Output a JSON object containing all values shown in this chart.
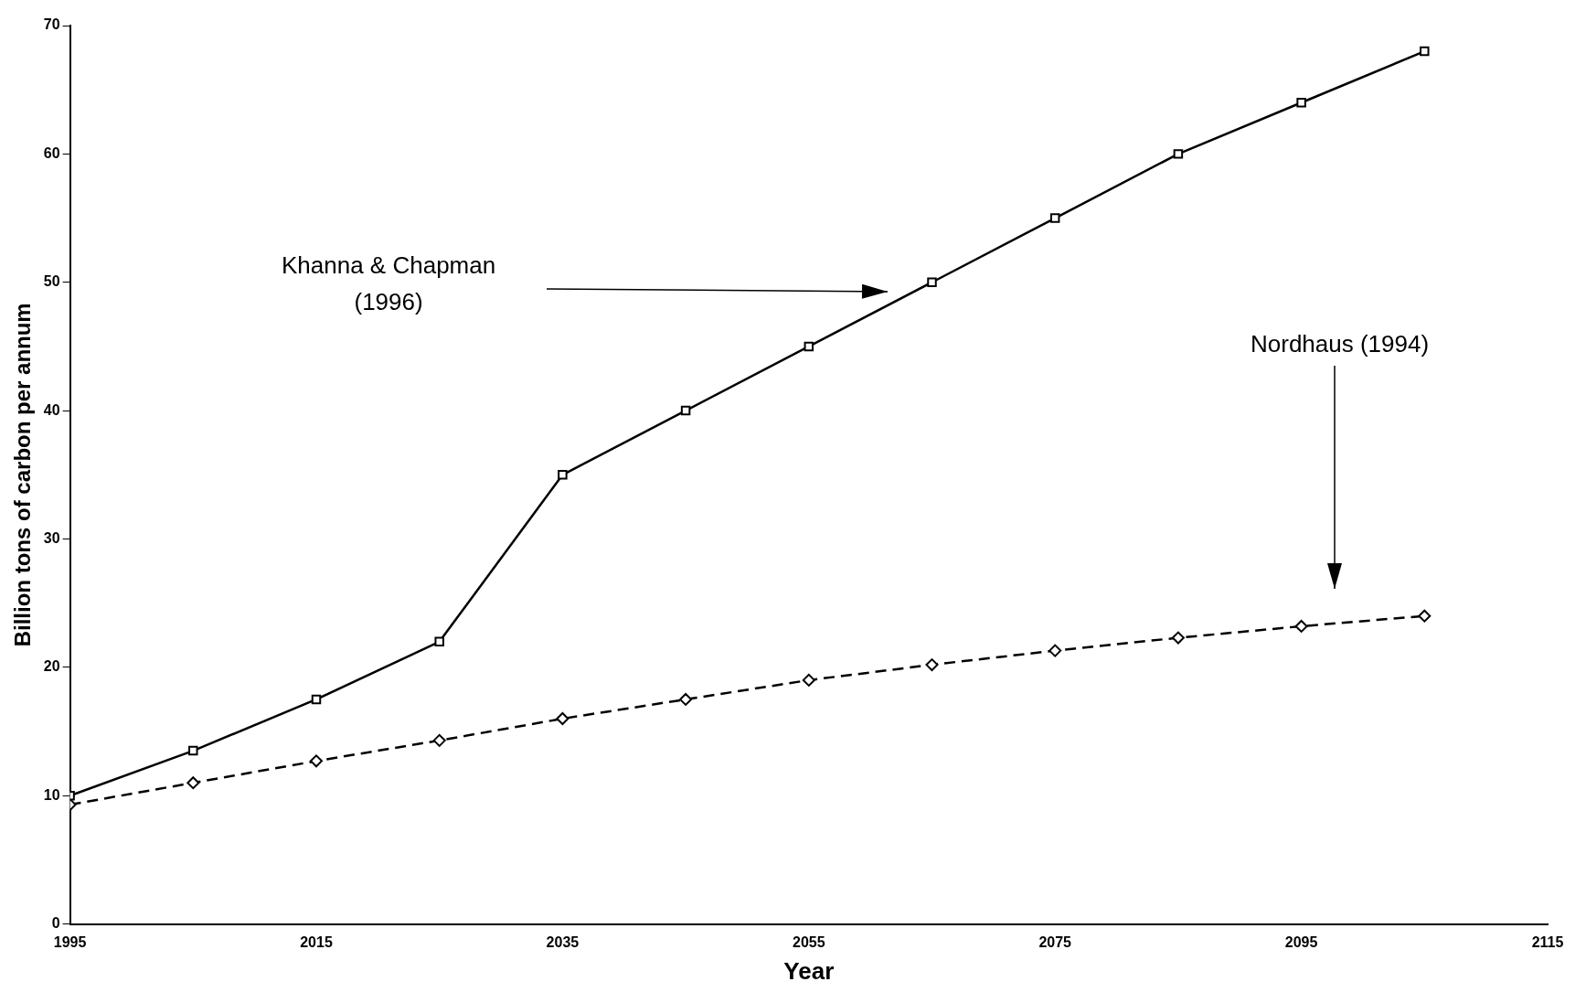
{
  "chart_data": {
    "type": "line",
    "xlabel": "Year",
    "ylabel": "Billion tons of carbon per annum",
    "x": [
      1995,
      2005,
      2015,
      2025,
      2035,
      2045,
      2055,
      2065,
      2075,
      2085,
      2095,
      2105
    ],
    "xlim": [
      1995,
      2115
    ],
    "xticks": [
      1995,
      2015,
      2035,
      2055,
      2075,
      2095,
      2115
    ],
    "ylim": [
      0,
      70
    ],
    "yticks": [
      0,
      10,
      20,
      30,
      40,
      50,
      60,
      70
    ],
    "grid": false,
    "legend": false,
    "series": [
      {
        "color": "#000000",
        "marker": "square",
        "line_style": "solid",
        "values": [
          10,
          13.5,
          17.5,
          22,
          35,
          40,
          45,
          50,
          55,
          60,
          64,
          68
        ]
      },
      {
        "color": "#000000",
        "marker": "diamond",
        "line_style": "dashed",
        "values": [
          9.3,
          11,
          12.7,
          14.3,
          16,
          17.5,
          19,
          20.2,
          21.3,
          22.3,
          23.2,
          24
        ]
      }
    ],
    "annotations": [
      "Khanna & Chapman\n(1996)",
      "Nordhaus (1994)"
    ]
  }
}
